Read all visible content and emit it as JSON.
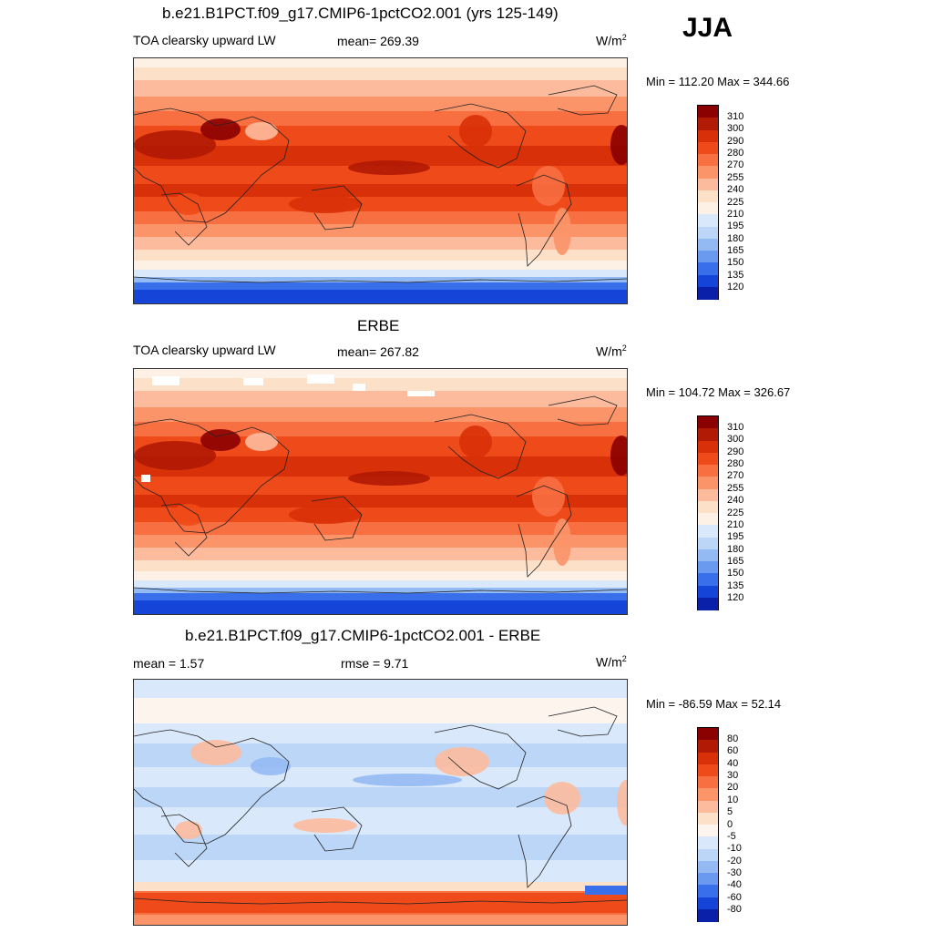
{
  "season": "JJA",
  "panels": [
    {
      "id": "model",
      "title": "b.e21.B1PCT.f09_g17.CMIP6-1pctCO2.001 (yrs 125-149)",
      "left_label": "TOA clearsky upward LW",
      "center_label": "mean= 269.39",
      "unit": "W/m",
      "unit_sup": "2",
      "minmax": "Min = 112.20 Max = 344.66",
      "field_kind": "abs",
      "colorbar": {
        "labels": [
          "310",
          "300",
          "290",
          "280",
          "270",
          "255",
          "240",
          "225",
          "210",
          "195",
          "180",
          "165",
          "150",
          "135",
          "120"
        ],
        "colors": [
          "#8b0000",
          "#b11a04",
          "#d83008",
          "#ef4a1a",
          "#f86f42",
          "#fb9469",
          "#fdbb9d",
          "#fde0c8",
          "#fdf0e4",
          "#d9e9fb",
          "#bcd6f8",
          "#93baf3",
          "#6a9af0",
          "#3a6fec",
          "#1444d8",
          "#0a20a8"
        ]
      }
    },
    {
      "id": "obs",
      "title": "ERBE",
      "left_label": "TOA clearsky upward LW",
      "center_label": "mean= 267.82",
      "unit": "W/m",
      "unit_sup": "2",
      "minmax": "Min = 104.72 Max = 326.67",
      "field_kind": "abs",
      "colorbar": {
        "labels": [
          "310",
          "300",
          "290",
          "280",
          "270",
          "255",
          "240",
          "225",
          "210",
          "195",
          "180",
          "165",
          "150",
          "135",
          "120"
        ],
        "colors": [
          "#8b0000",
          "#b11a04",
          "#d83008",
          "#ef4a1a",
          "#f86f42",
          "#fb9469",
          "#fdbb9d",
          "#fde0c8",
          "#fdf0e4",
          "#d9e9fb",
          "#bcd6f8",
          "#93baf3",
          "#6a9af0",
          "#3a6fec",
          "#1444d8",
          "#0a20a8"
        ]
      }
    },
    {
      "id": "diff",
      "title": "b.e21.B1PCT.f09_g17.CMIP6-1pctCO2.001 - ERBE",
      "left_label": "mean =   1.57",
      "center_label": "rmse =   9.71",
      "unit": "W/m",
      "unit_sup": "2",
      "minmax": "Min = -86.59 Max =  52.14",
      "field_kind": "diff",
      "colorbar": {
        "labels": [
          "80",
          "60",
          "40",
          "30",
          "20",
          "10",
          "5",
          "0",
          "-5",
          "-10",
          "-20",
          "-30",
          "-40",
          "-60",
          "-80"
        ],
        "colors": [
          "#8b0000",
          "#b11a04",
          "#d83008",
          "#ef4a1a",
          "#f86f42",
          "#fb9469",
          "#fdbb9d",
          "#fde0c8",
          "#fdf4ee",
          "#d9e9fb",
          "#bcd6f8",
          "#93baf3",
          "#6a9af0",
          "#3a6fec",
          "#1444d8",
          "#0a20a8"
        ]
      }
    }
  ]
}
